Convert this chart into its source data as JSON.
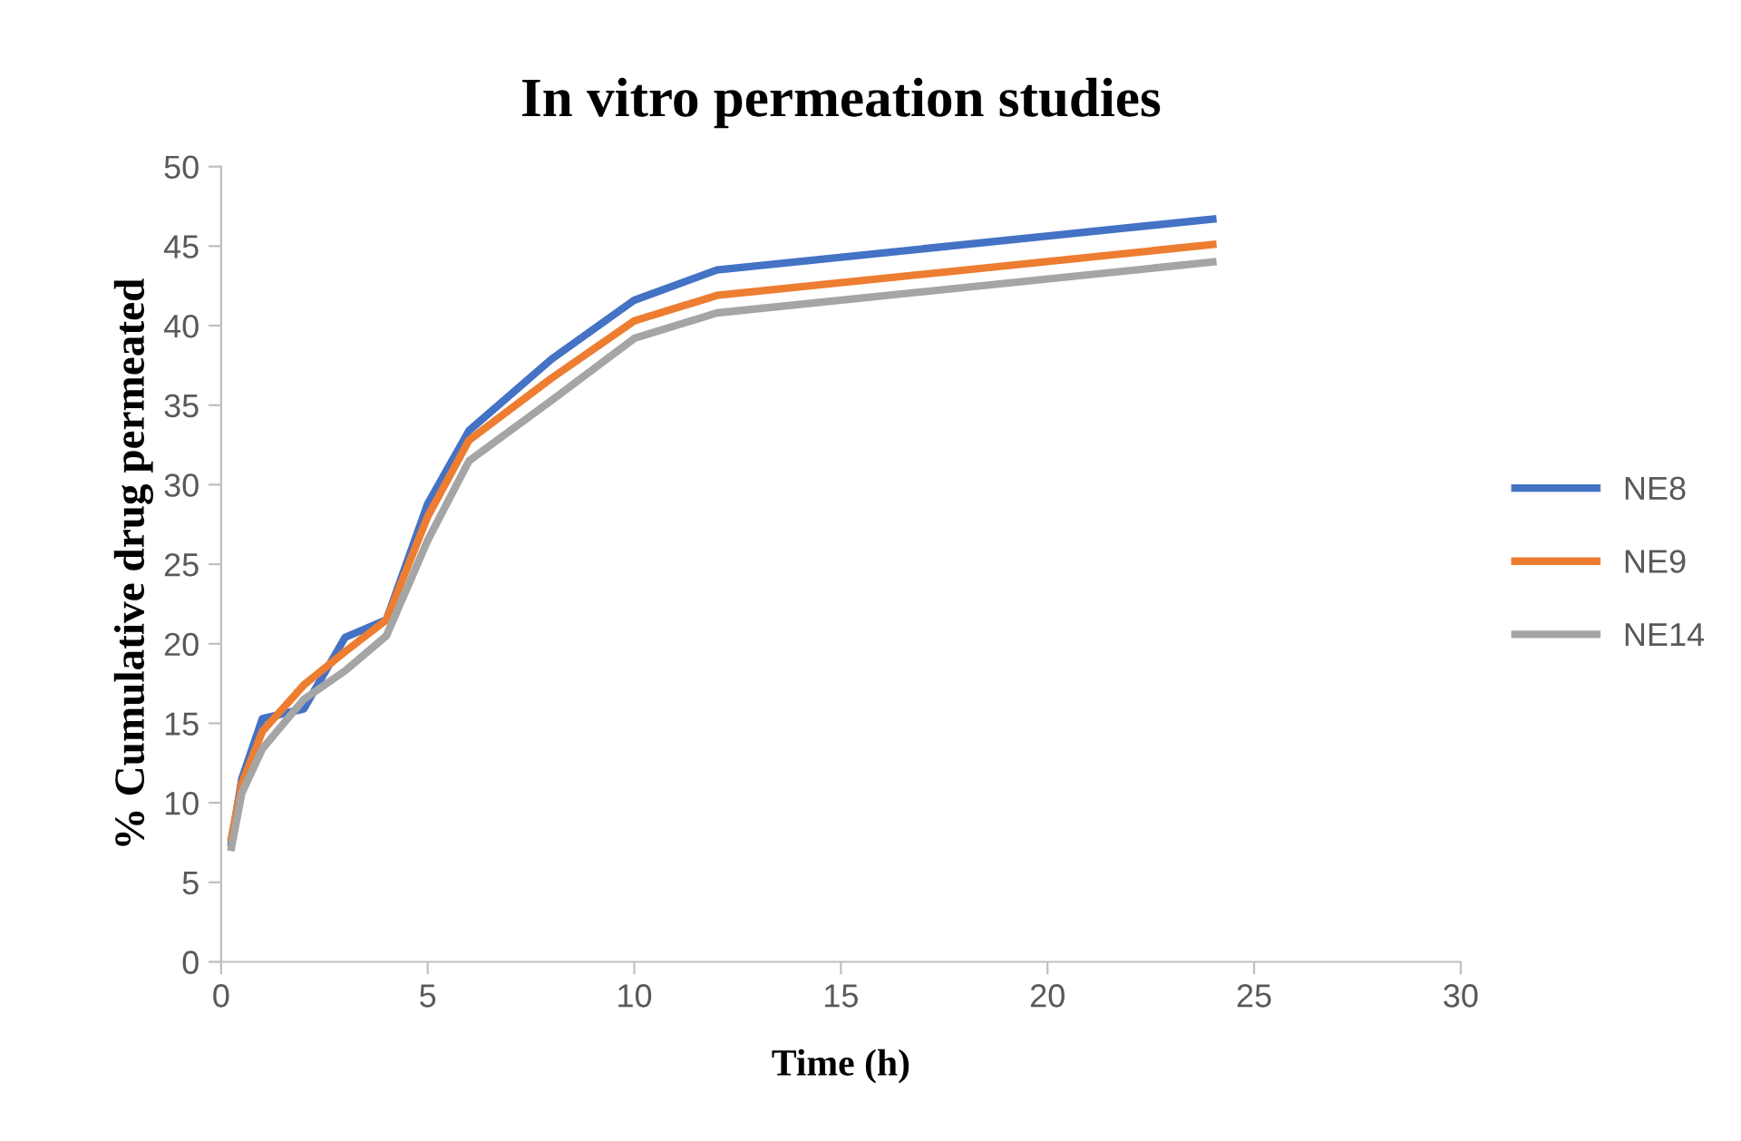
{
  "chart_data": {
    "type": "line",
    "title": "In vitro permeation studies",
    "xlabel": "Time (h)",
    "ylabel": "% Cumulative drug permeated",
    "x": [
      0.25,
      0.5,
      1,
      2,
      3,
      4,
      5,
      6,
      8,
      10,
      12,
      24
    ],
    "series": [
      {
        "name": "NE8",
        "color": "#4472c4",
        "values": [
          7.5,
          11.5,
          15.3,
          15.9,
          20.4,
          21.5,
          28.8,
          33.4,
          37.9,
          41.6,
          43.5,
          46.7
        ]
      },
      {
        "name": "NE9",
        "color": "#ed7d31",
        "values": [
          7.8,
          11.2,
          14.5,
          17.4,
          19.5,
          21.5,
          28.0,
          32.8,
          36.7,
          40.3,
          41.9,
          45.1
        ]
      },
      {
        "name": "NE14",
        "color": "#a5a5a5",
        "values": [
          7.2,
          10.6,
          13.4,
          16.5,
          18.3,
          20.5,
          26.5,
          31.5,
          35.3,
          39.2,
          40.8,
          44.0
        ]
      }
    ],
    "xlim": [
      0,
      30
    ],
    "xticks": [
      0,
      5,
      10,
      15,
      20,
      25,
      30
    ],
    "ylim": [
      0,
      50
    ],
    "yticks": [
      0,
      5,
      10,
      15,
      20,
      25,
      30,
      35,
      40,
      45,
      50
    ],
    "grid": false,
    "legend": "right",
    "marker": "none",
    "line_style": "solid"
  }
}
